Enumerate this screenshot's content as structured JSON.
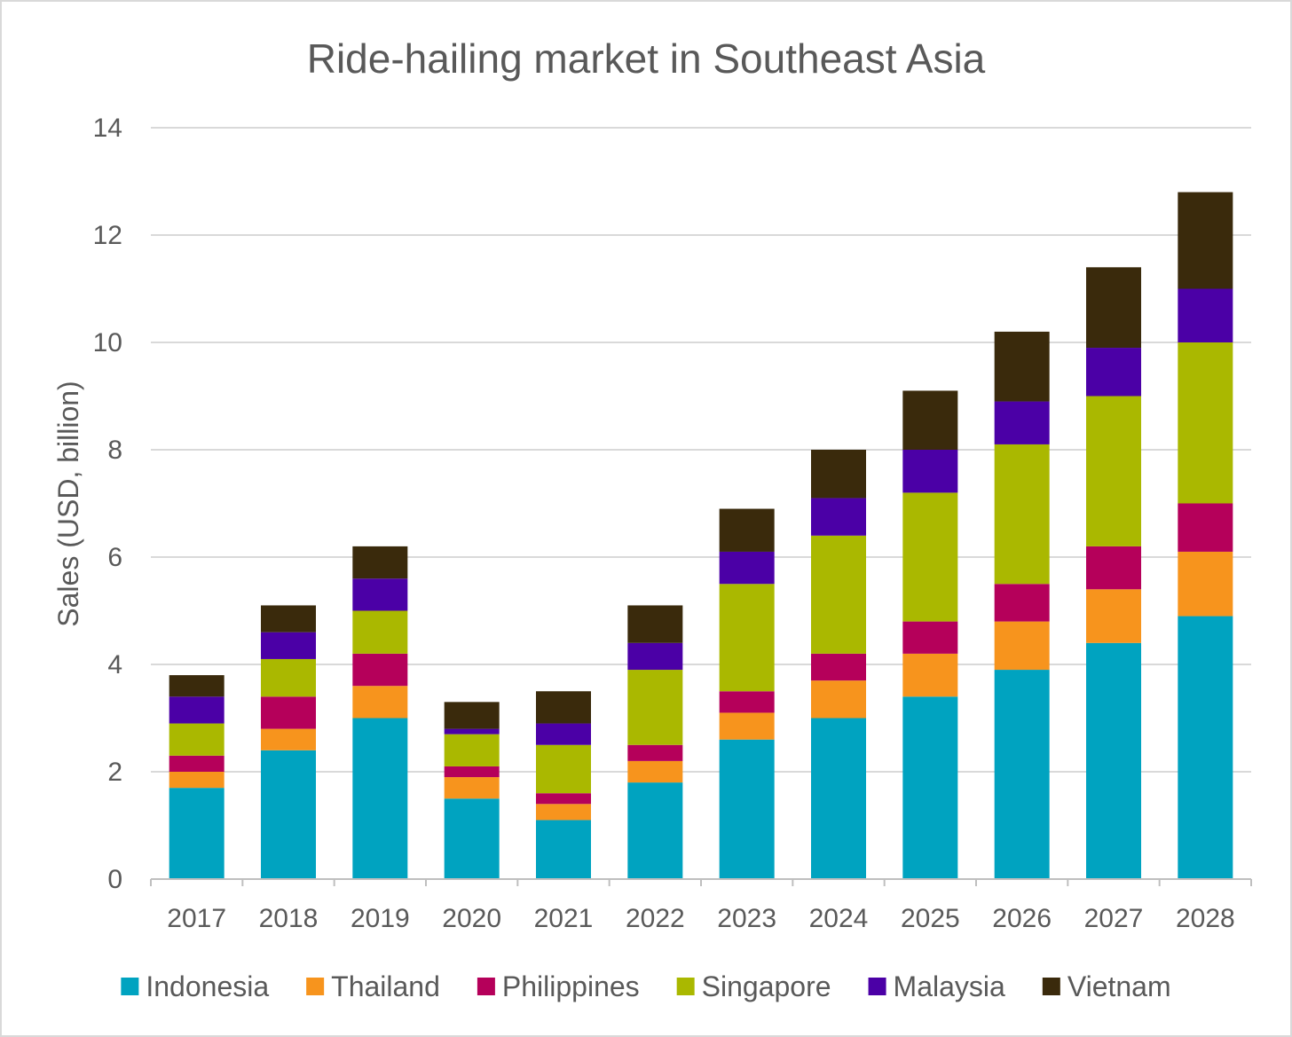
{
  "chart_data": {
    "type": "bar",
    "stacked": true,
    "title": "Ride-hailing market in Southeast Asia",
    "xlabel": "",
    "ylabel": "Sales (USD, billion)",
    "ylim": [
      0,
      14
    ],
    "yticks": [
      0,
      2,
      4,
      6,
      8,
      10,
      12,
      14
    ],
    "grid": true,
    "legend_position": "bottom",
    "categories": [
      "2017",
      "2018",
      "2019",
      "2020",
      "2021",
      "2022",
      "2023",
      "2024",
      "2025",
      "2026",
      "2027",
      "2028"
    ],
    "series": [
      {
        "name": "Indonesia",
        "color": "#00a3c0",
        "values": [
          1.7,
          2.4,
          3.0,
          1.5,
          1.1,
          1.8,
          2.6,
          3.0,
          3.4,
          3.9,
          4.4,
          4.9
        ]
      },
      {
        "name": "Thailand",
        "color": "#f7941d",
        "values": [
          0.3,
          0.4,
          0.6,
          0.4,
          0.3,
          0.4,
          0.5,
          0.7,
          0.8,
          0.9,
          1.0,
          1.2
        ]
      },
      {
        "name": "Philippines",
        "color": "#b5005a",
        "values": [
          0.3,
          0.6,
          0.6,
          0.2,
          0.2,
          0.3,
          0.4,
          0.5,
          0.6,
          0.7,
          0.8,
          0.9
        ]
      },
      {
        "name": "Singapore",
        "color": "#aab800",
        "values": [
          0.6,
          0.7,
          0.8,
          0.6,
          0.9,
          1.4,
          2.0,
          2.2,
          2.4,
          2.6,
          2.8,
          3.0
        ]
      },
      {
        "name": "Malaysia",
        "color": "#4b00a6",
        "values": [
          0.5,
          0.5,
          0.6,
          0.1,
          0.4,
          0.5,
          0.6,
          0.7,
          0.8,
          0.8,
          0.9,
          1.0
        ]
      },
      {
        "name": "Vietnam",
        "color": "#3a2a0c",
        "values": [
          0.4,
          0.5,
          0.6,
          0.5,
          0.6,
          0.7,
          0.8,
          0.9,
          1.1,
          1.3,
          1.5,
          1.8
        ]
      }
    ]
  }
}
